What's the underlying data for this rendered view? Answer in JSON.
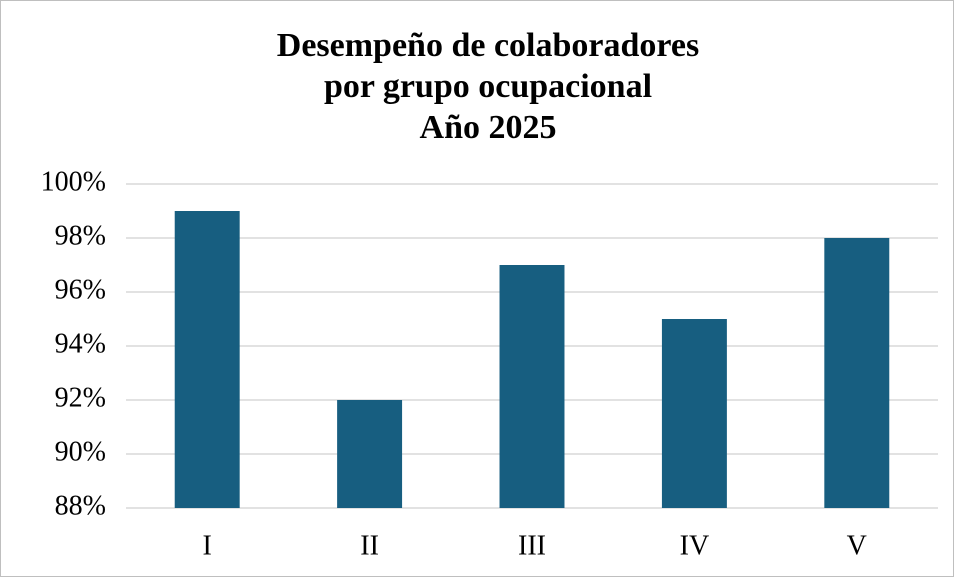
{
  "chart_data": {
    "type": "bar",
    "title": [
      "Desempeño de colaboradores",
      "por grupo ocupacional",
      "Año 2025"
    ],
    "categories": [
      "I",
      "II",
      "III",
      "IV",
      "V"
    ],
    "values": [
      99,
      92,
      97,
      95,
      98
    ],
    "color": "#175e80",
    "ylim": [
      88,
      100
    ],
    "yticks": [
      {
        "value": 88,
        "label": "88%"
      },
      {
        "value": 90,
        "label": "90%"
      },
      {
        "value": 92,
        "label": "92%"
      },
      {
        "value": 94,
        "label": "94%"
      },
      {
        "value": 96,
        "label": "96%"
      },
      {
        "value": 98,
        "label": "98%"
      },
      {
        "value": 100,
        "label": "100%"
      }
    ],
    "grid": true
  }
}
